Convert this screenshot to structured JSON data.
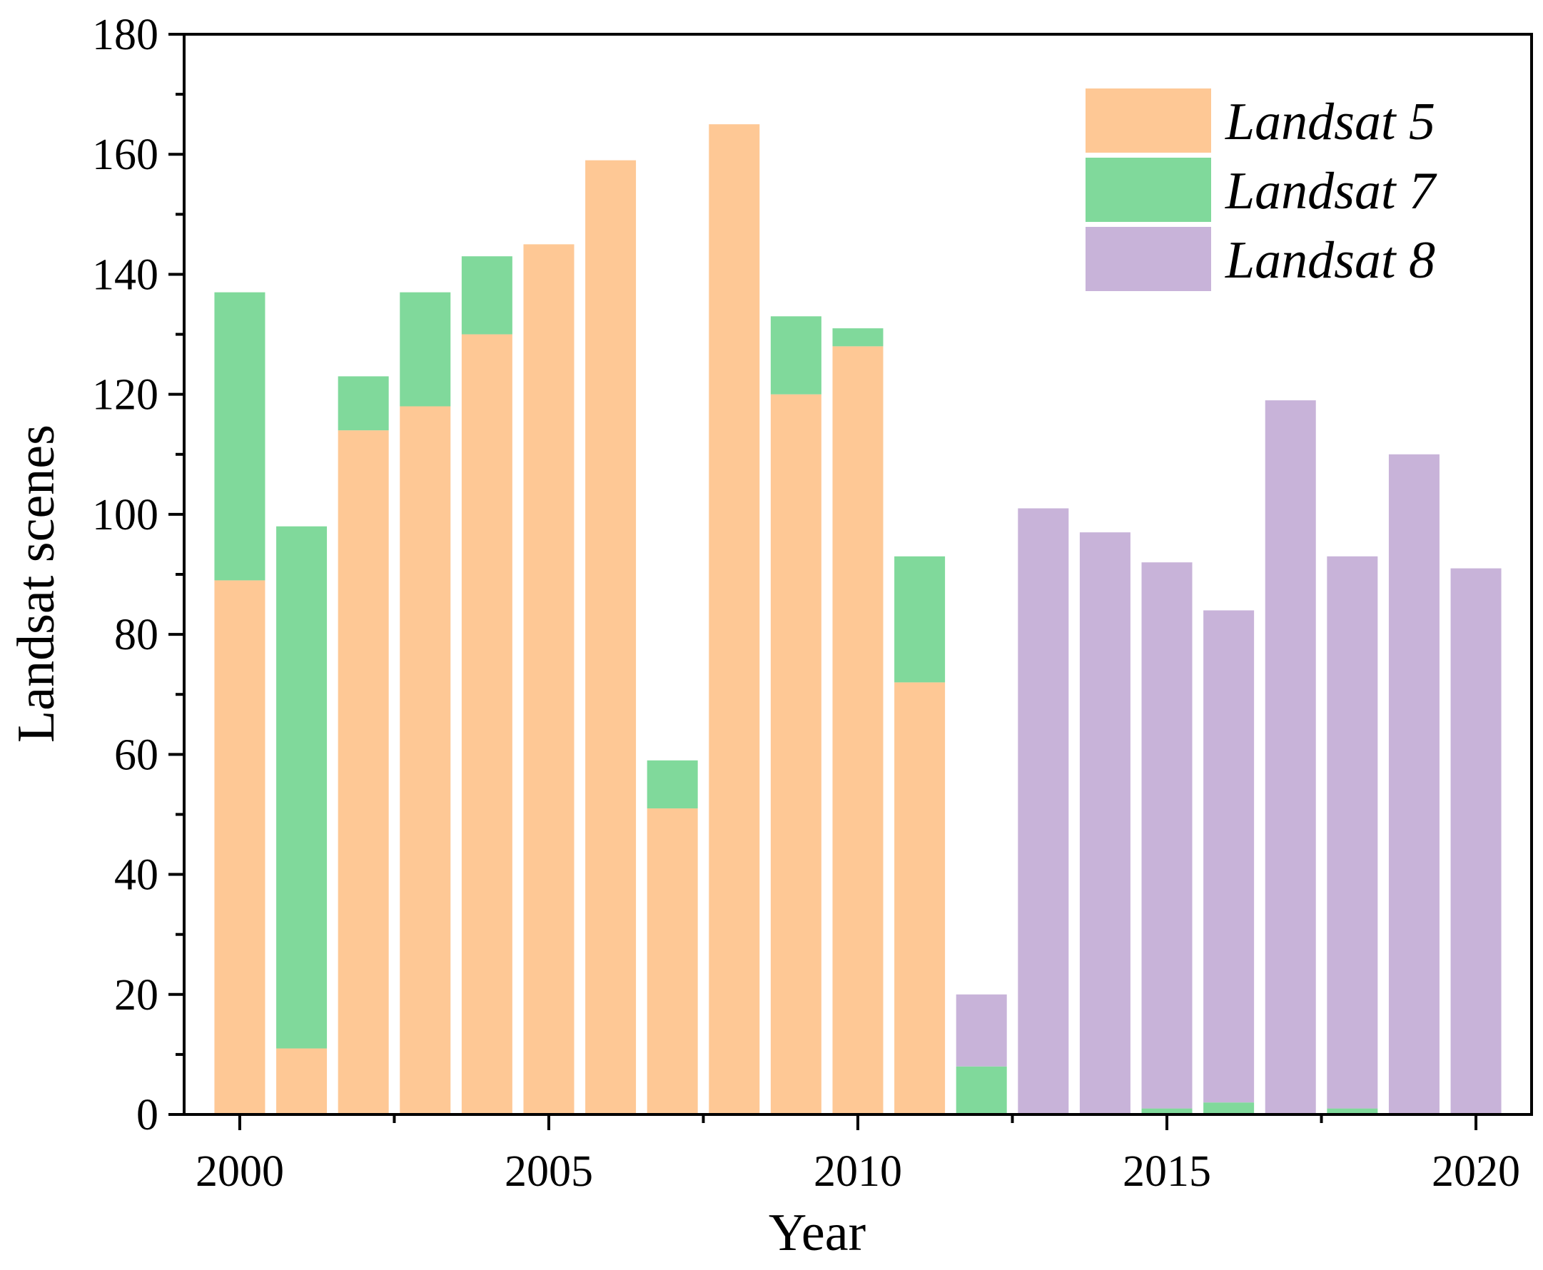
{
  "chart_data": {
    "type": "bar",
    "stacked": true,
    "xlabel": "Year",
    "ylabel": "Landsat scenes",
    "ylim": [
      0,
      180
    ],
    "yticks": [
      0,
      20,
      40,
      60,
      80,
      100,
      120,
      140,
      160,
      180
    ],
    "xticks": [
      2000,
      2005,
      2010,
      2015,
      2020
    ],
    "legend_position": "top-right",
    "categories": [
      2000,
      2001,
      2002,
      2003,
      2004,
      2005,
      2006,
      2007,
      2008,
      2009,
      2010,
      2011,
      2012,
      2013,
      2014,
      2015,
      2016,
      2017,
      2018,
      2019,
      2020
    ],
    "series": [
      {
        "name": "Landsat 5",
        "color": "#fec895",
        "values": [
          89,
          11,
          114,
          118,
          130,
          145,
          159,
          51,
          165,
          120,
          128,
          72,
          0,
          0,
          0,
          0,
          0,
          0,
          0,
          0,
          0
        ]
      },
      {
        "name": "Landsat 7",
        "color": "#80d99b",
        "values": [
          48,
          87,
          9,
          19,
          13,
          0,
          0,
          8,
          0,
          13,
          3,
          21,
          8,
          0,
          0,
          1,
          2,
          0,
          1,
          0,
          0
        ]
      },
      {
        "name": "Landsat 8",
        "color": "#c8b3d9",
        "values": [
          0,
          0,
          0,
          0,
          0,
          0,
          0,
          0,
          0,
          0,
          0,
          0,
          12,
          101,
          97,
          91,
          82,
          119,
          92,
          110,
          91
        ]
      }
    ]
  }
}
